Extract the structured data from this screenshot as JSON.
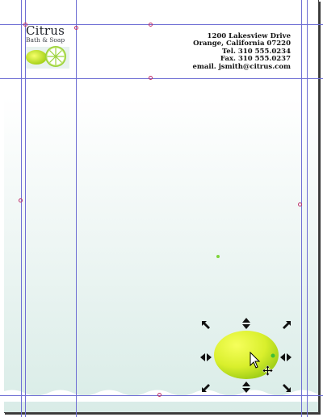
{
  "logo": {
    "title": "Citrus",
    "subtitle": "Bath & Soap"
  },
  "address": {
    "line1": "1200 Lakesview Drive",
    "line2": "Orange, California 07220",
    "line3": "Tel. 310 555.0234",
    "line4": "Fax. 310 555.0237",
    "line5": "email. jsmith@citrus.com"
  },
  "colors": {
    "guide": "#6f6fd4",
    "anchor": "#c0306a",
    "lemon_light": "#f2ff5a",
    "lemon_dark": "#9acd1a"
  },
  "icons": {
    "resize_handles": "double-headed arrows",
    "pointer": "arrow cursor",
    "move": "four-way move cursor"
  }
}
